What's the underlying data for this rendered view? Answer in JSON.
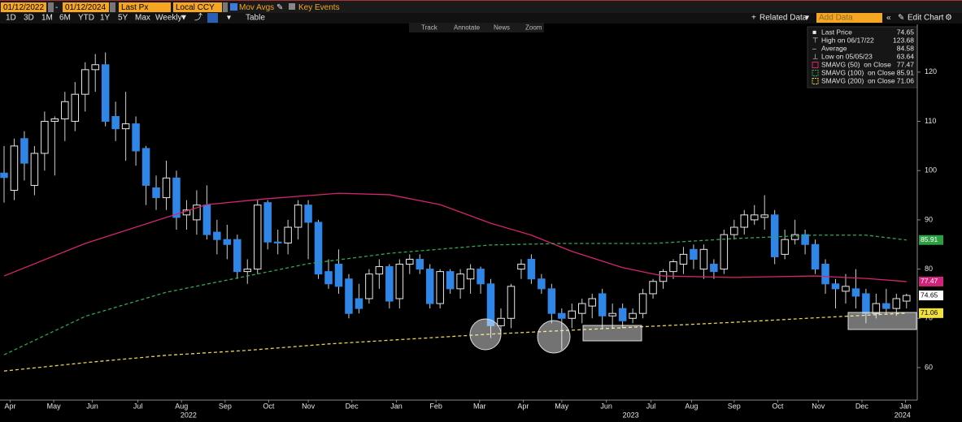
{
  "toolbar": {
    "start_date": "01/12/2022",
    "end_date": "01/12/2024",
    "field": "Last Px",
    "currency": "Local CCY",
    "mov_avgs": "Mov Avgs",
    "key_events": "Key Events",
    "periods": [
      "1D",
      "3D",
      "1M",
      "6M",
      "YTD",
      "1Y",
      "5Y",
      "Max"
    ],
    "frequency": "Weekly",
    "table": "Table",
    "related": "Related Data",
    "add_data": "Add Data",
    "edit_chart": "Edit Chart",
    "tools": [
      "Track",
      "Annotate",
      "News",
      "Zoom"
    ]
  },
  "chart_data": {
    "type": "candlestick",
    "open": [
      99.5,
      96,
      106.5,
      97,
      103.5,
      110,
      110.5,
      110,
      115.5,
      120.5,
      121.5,
      111,
      108.5,
      109.5,
      104.5,
      96.5,
      94.5,
      98.5,
      91,
      90,
      93,
      87.5,
      86,
      86,
      79.5,
      80,
      93.5,
      85.5,
      85.3,
      88.5,
      93,
      89.5,
      79.5,
      81,
      78,
      74,
      74,
      79,
      80.5,
      74,
      81,
      82,
      80,
      73,
      79.5,
      76,
      78,
      80,
      77,
      68.5,
      70,
      80,
      82,
      78,
      76,
      71,
      70,
      71,
      72.5,
      75,
      70.5,
      72,
      70,
      71,
      75,
      77.5,
      79.5,
      81,
      84,
      80,
      81,
      80,
      87,
      88.5,
      90,
      90.5,
      91,
      83,
      86,
      87,
      85,
      81,
      77,
      75.5,
      76,
      75,
      71,
      73,
      72,
      73.5
    ],
    "high": [
      105,
      106.5,
      108,
      105,
      112,
      111,
      116,
      118,
      122,
      123.68,
      124,
      114,
      116,
      111,
      105,
      99,
      102,
      100,
      94,
      96,
      97,
      90,
      89,
      87,
      82,
      94,
      94,
      88,
      90,
      94,
      94,
      90,
      82,
      84,
      79,
      77,
      80,
      82,
      81,
      82,
      83,
      83,
      81,
      80,
      80,
      80,
      81,
      80.5,
      78,
      72,
      77,
      82,
      83,
      79,
      77,
      72,
      73,
      74,
      75,
      76,
      73,
      73,
      72,
      76,
      78,
      80,
      82,
      84.5,
      85,
      85,
      82,
      88,
      90,
      92,
      93,
      95,
      92,
      88,
      90,
      88,
      86,
      82,
      78,
      79,
      80,
      76,
      75,
      76,
      75,
      75
    ],
    "low": [
      93.5,
      94,
      98,
      95,
      100,
      99,
      106,
      108,
      112,
      116,
      109,
      106,
      102,
      101,
      93,
      92,
      92,
      88,
      88,
      87,
      86,
      83,
      82,
      78,
      77,
      79,
      84,
      83,
      83,
      86,
      82,
      78,
      76,
      75,
      70,
      71,
      73,
      76,
      72,
      72,
      79,
      79,
      72,
      72,
      75,
      74,
      75,
      75,
      66,
      66.5,
      68,
      78,
      77,
      75,
      69,
      63.64,
      68,
      69,
      70,
      68,
      68,
      68,
      69,
      70,
      74,
      76,
      78,
      79,
      80,
      78,
      78,
      79,
      86,
      87,
      89,
      88,
      81,
      82,
      85,
      83,
      79,
      75,
      72,
      73,
      72,
      69,
      70,
      71,
      70.5,
      72
    ],
    "close": [
      98.6,
      105,
      101.5,
      103.5,
      110,
      110.5,
      114,
      115.5,
      120.5,
      121.5,
      110,
      108.5,
      109.5,
      104,
      97,
      94.5,
      98.5,
      90.5,
      92,
      93,
      87,
      86,
      85,
      79.5,
      80,
      93,
      85.5,
      85.3,
      88.5,
      93,
      89.5,
      79,
      77,
      76.5,
      71,
      72,
      79,
      80.5,
      73.5,
      81,
      82,
      80,
      73,
      79.5,
      76,
      79,
      80,
      77,
      68.5,
      70,
      76.5,
      81,
      78,
      76,
      71,
      70,
      71.5,
      73,
      74,
      70.5,
      71,
      69.5,
      71,
      75,
      77.5,
      79.5,
      81.5,
      83,
      82,
      84,
      79.5,
      87,
      88.5,
      91,
      91,
      91,
      82.5,
      86,
      87,
      85,
      80,
      77,
      76,
      76.5,
      74.5,
      71,
      73,
      72,
      74,
      74.65
    ],
    "up_color": "#000000",
    "down_color": "#2f86e6",
    "up_stroke": "#e8e8e8",
    "xlim": [
      -0.4,
      90.06
    ],
    "xticks": [
      {
        "value": 0.6,
        "label": "Apr"
      },
      {
        "value": 4.9,
        "label": "May"
      },
      {
        "value": 8.7,
        "label": "Jun"
      },
      {
        "value": 13.2,
        "label": "Jul"
      },
      {
        "value": 17.5,
        "label": "Aug"
      },
      {
        "value": 21.8,
        "label": "Sep"
      },
      {
        "value": 26.1,
        "label": "Oct"
      },
      {
        "value": 30,
        "label": "Nov"
      },
      {
        "value": 34.3,
        "label": "Dec"
      },
      {
        "value": 38.7,
        "label": "Jan"
      },
      {
        "value": 42.6,
        "label": "Feb"
      },
      {
        "value": 46.9,
        "label": "Mar"
      },
      {
        "value": 51.2,
        "label": "Apr"
      },
      {
        "value": 55,
        "label": "May"
      },
      {
        "value": 59.4,
        "label": "Jun"
      },
      {
        "value": 63.8,
        "label": "Jul"
      },
      {
        "value": 67.8,
        "label": "Aug"
      },
      {
        "value": 72,
        "label": "Sep"
      },
      {
        "value": 76.3,
        "label": "Oct"
      },
      {
        "value": 80.3,
        "label": "Nov"
      },
      {
        "value": 84.6,
        "label": "Dec"
      },
      {
        "value": 88.9,
        "label": "Jan"
      }
    ],
    "year_ticks": [
      {
        "value": 18.2,
        "label": "2022"
      },
      {
        "value": 61.8,
        "label": "2023"
      },
      {
        "value": 88.6,
        "label": "2024"
      }
    ],
    "ylim": [
      53.4,
      129.7
    ],
    "yticks": [
      60,
      70,
      80,
      90,
      100,
      110,
      120
    ],
    "series": [
      {
        "name": "SMAVG (50)  on Close",
        "color": "#d6246e",
        "dash": "none",
        "tag_color": "#d1237a",
        "x": [
          0,
          8,
          16,
          20,
          26,
          33,
          38,
          43,
          48,
          52,
          56,
          61,
          65,
          72,
          80,
          85,
          89
        ],
        "values": [
          78.6,
          85.2,
          90.5,
          93.1,
          94.3,
          95.4,
          95.1,
          93.1,
          89.3,
          86.9,
          83.6,
          80.3,
          78.6,
          78.3,
          78.6,
          78.1,
          77.47
        ]
      },
      {
        "name": "SMAVG (100)  on Close",
        "color": "#2fa84f",
        "dash": "4 3",
        "tag_color": "#2ea043",
        "x": [
          0,
          8,
          16,
          24,
          30,
          38,
          48,
          55,
          64,
          72,
          80,
          85,
          89
        ],
        "values": [
          62.6,
          70.4,
          75.3,
          78.6,
          81.1,
          83.2,
          84.9,
          85.2,
          85.2,
          86.2,
          86.9,
          86.9,
          85.91
        ]
      },
      {
        "name": "SMAVG (200)  on Close",
        "color": "#e8d44d",
        "dash": "4 3",
        "tag_color": "#f0e040",
        "x": [
          0,
          8,
          16,
          24,
          32,
          40,
          48,
          56,
          64,
          72,
          80,
          89
        ],
        "values": [
          59.3,
          61.0,
          62.5,
          63.5,
          64.8,
          65.8,
          66.8,
          67.6,
          68.4,
          69.2,
          70.1,
          71.06
        ]
      }
    ],
    "legend_entries": [
      {
        "label": "Last Price",
        "value": 74.65
      },
      {
        "label": "High on 06/17/22",
        "value": 123.68
      },
      {
        "label": "Average",
        "value": 84.58
      },
      {
        "label": "Low on 05/05/23",
        "value": 63.64
      }
    ]
  }
}
